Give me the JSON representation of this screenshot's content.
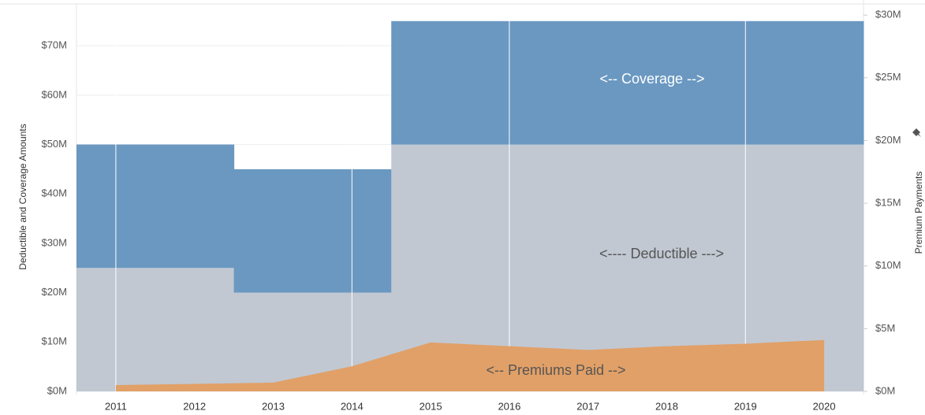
{
  "chart_data": {
    "type": "stacked-step-area",
    "categories": [
      "2011",
      "2012",
      "2013",
      "2014",
      "2015",
      "2016",
      "2017",
      "2018",
      "2019",
      "2020"
    ],
    "series": [
      {
        "name": "Deductible",
        "color": "#c1c8d2",
        "values": [
          25000000,
          25000000,
          20000000,
          20000000,
          50000000,
          50000000,
          50000000,
          50000000,
          50000000,
          50000000
        ]
      },
      {
        "name": "Coverage",
        "color": "#6a98c1",
        "values": [
          25000000,
          25000000,
          25000000,
          25000000,
          25000000,
          25000000,
          25000000,
          25000000,
          25000000,
          25000000
        ]
      },
      {
        "name": "Premiums Paid",
        "color": "#e1a067",
        "axis": "y2",
        "values": [
          500000,
          600000,
          700000,
          2000000,
          3900000,
          3600000,
          3300000,
          3600000,
          3800000,
          4100000
        ]
      }
    ],
    "annotations": [
      "<-- Coverage -->",
      "<----  Deductible --->",
      "<-- Premiums Paid -->"
    ],
    "ylabel": "Deductible and Coverage Amounts",
    "y2label": "Premium Payments",
    "ylim": [
      0,
      78000000
    ],
    "yticks": [
      {
        "value": 0,
        "label": "$0M"
      },
      {
        "value": 10000000,
        "label": "$10M"
      },
      {
        "value": 20000000,
        "label": "$20M"
      },
      {
        "value": 30000000,
        "label": "$30M"
      },
      {
        "value": 40000000,
        "label": "$40M"
      },
      {
        "value": 50000000,
        "label": "$50M"
      },
      {
        "value": 60000000,
        "label": "$60M"
      },
      {
        "value": 70000000,
        "label": "$70M"
      }
    ],
    "y2lim": [
      0,
      30700000
    ],
    "y2ticks": [
      {
        "value": 0,
        "label": "$0M"
      },
      {
        "value": 5000000,
        "label": "$5M"
      },
      {
        "value": 10000000,
        "label": "$10M"
      },
      {
        "value": 15000000,
        "label": "$15M"
      },
      {
        "value": 20000000,
        "label": "$20M"
      },
      {
        "value": 25000000,
        "label": "$25M"
      },
      {
        "value": 30000000,
        "label": "$30M"
      }
    ],
    "grid": true
  }
}
